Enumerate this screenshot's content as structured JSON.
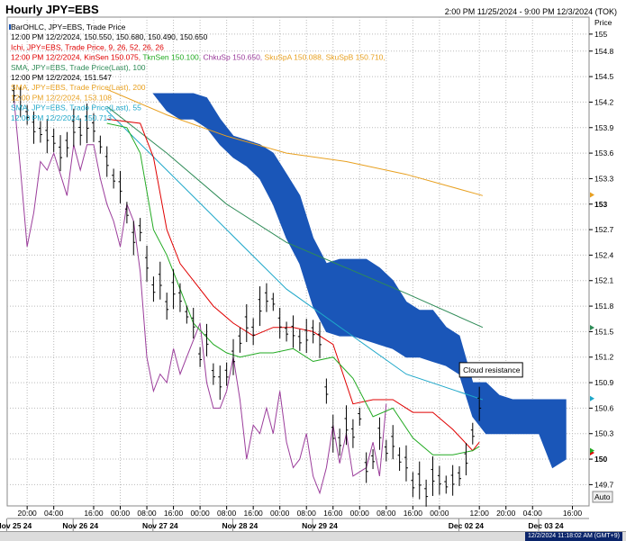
{
  "header": {
    "title": "Hourly JPY=EBS",
    "range": "2:00 PM 11/25/2024 - 9:00 PM 12/3/2024 (TOK)"
  },
  "status": {
    "timestamp": "12/2/2024 11:18:02 AM (GMT+9)"
  },
  "legend": [
    {
      "text": "BarOHLC, JPY=EBS, Trade Price",
      "color": "#000000"
    },
    {
      "text": "12:00 PM 12/2/2024, 150.550, 150.680, 150.490, 150.650",
      "color": "#000000"
    },
    {
      "text": "Ichi, JPY=EBS, Trade Price, 9, 26, 52, 26, 26",
      "color": "#e00000"
    },
    {
      "text": "12:00 PM 12/2/2024, ",
      "color": "#e00000",
      "parts": [
        {
          "text": "KinSen 150.075",
          "color": "#e00000"
        },
        {
          "text": "TknSen 150.100",
          "color": "#22aa22"
        },
        {
          "text": "ChkuSp 150.650",
          "color": "#9b3d9b"
        },
        {
          "text": "SkuSpA 150.088",
          "color": "#e8a020"
        },
        {
          "text": "SkuSpB 150.710",
          "color": "#e8a020"
        }
      ]
    },
    {
      "text": "SMA, JPY=EBS, Trade Price(Last), 100",
      "color": "#2e8b57"
    },
    {
      "text": "12:00 PM 12/2/2024, 151.547",
      "color": "#000000"
    },
    {
      "text": "SMA, JPY=EBS, Trade Price(Last), 200",
      "color": "#e8a020"
    },
    {
      "text": "12:00 PM 12/2/2024, 153.108",
      "color": "#e8a020"
    },
    {
      "text": "SMA, JPY=EBS, Trade Price(Last), 55",
      "color": "#1ea7c9"
    },
    {
      "text": "12:00 PM 12/2/2024, 150.713",
      "color": "#1ea7c9"
    }
  ],
  "annotation": {
    "text": "Cloud resistance"
  },
  "axis_label": "Price",
  "auto_label": "Auto",
  "colors": {
    "cloud": "#1a56b8",
    "kijun": "#e00000",
    "tenkan": "#22aa22",
    "chikou": "#9b3d9b",
    "sma100": "#2e8b57",
    "sma200": "#e8a020",
    "sma55": "#1ea7c9",
    "bars": "#000000"
  },
  "chart_data": {
    "type": "line",
    "title": "Hourly JPY=EBS",
    "ylabel": "Price",
    "ylim": [
      149.45,
      155.2
    ],
    "y_ticks": [
      155,
      154.8,
      154.5,
      154.2,
      153.9,
      153.6,
      153.3,
      153,
      152.7,
      152.4,
      152.1,
      151.8,
      151.5,
      151.2,
      150.9,
      150.6,
      150.3,
      150,
      149.7
    ],
    "y_ticks_bold": [
      153,
      150
    ],
    "x_ticks": [
      "20:00",
      "04:00",
      "16:00",
      "00:00",
      "08:00",
      "16:00",
      "00:00",
      "08:00",
      "16:00",
      "00:00",
      "08:00",
      "16:00",
      "00:00",
      "08:00",
      "16:00",
      "00:00",
      "12:00",
      "20:00",
      "04:00",
      "16:00"
    ],
    "x_tick_hours": [
      6,
      14,
      26,
      34,
      42,
      50,
      58,
      66,
      74,
      82,
      90,
      98,
      106,
      114,
      122,
      130,
      142,
      150,
      158,
      170
    ],
    "date_labels": [
      "Nov 25 24",
      "Nov 26 24",
      "Nov 27 24",
      "Nov 28 24",
      "Nov 29 24",
      "Dec 02 24",
      "Dec 03 24"
    ],
    "date_label_hours": [
      2,
      22,
      46,
      70,
      94,
      138,
      162
    ],
    "x_range_hours": [
      0,
      175
    ],
    "grid": true,
    "markers": [
      {
        "series": "sma200",
        "y": 153.108
      },
      {
        "series": "sma100",
        "y": 151.547
      },
      {
        "series": "sma55",
        "y": 150.713
      },
      {
        "series": "kijun",
        "y": 150.075
      },
      {
        "series": "tenkan",
        "y": 150.1
      }
    ],
    "series": [
      {
        "name": "SMA, JPY=EBS, Trade Price(Last), 200",
        "key": "sma200",
        "x": [
          30,
          48,
          66,
          84,
          102,
          120,
          143
        ],
        "y": [
          154.35,
          154.05,
          153.8,
          153.6,
          153.5,
          153.35,
          153.1
        ]
      },
      {
        "name": "SMA, JPY=EBS, Trade Price(Last), 100",
        "key": "sma100",
        "x": [
          30,
          48,
          66,
          84,
          102,
          120,
          143
        ],
        "y": [
          154.15,
          153.6,
          153.0,
          152.55,
          152.25,
          151.95,
          151.55
        ]
      },
      {
        "name": "SMA, JPY=EBS, Trade Price(Last), 55",
        "key": "sma55",
        "x": [
          30,
          48,
          66,
          84,
          102,
          120,
          143
        ],
        "y": [
          154.1,
          153.4,
          152.7,
          152.0,
          151.5,
          151.0,
          150.7
        ]
      },
      {
        "name": "KinSen",
        "key": "kijun",
        "x": [
          30,
          40,
          44,
          48,
          52,
          56,
          62,
          68,
          74,
          80,
          86,
          92,
          98,
          104,
          110,
          116,
          122,
          128,
          134,
          140,
          142
        ],
        "y": [
          154.0,
          153.95,
          153.55,
          152.7,
          152.3,
          152.1,
          151.8,
          151.6,
          151.45,
          151.55,
          151.55,
          151.5,
          151.35,
          150.65,
          150.7,
          150.7,
          150.55,
          150.55,
          150.35,
          150.1,
          150.2
        ]
      },
      {
        "name": "TknSen",
        "key": "tenkan",
        "x": [
          30,
          36,
          40,
          44,
          48,
          52,
          56,
          62,
          66,
          70,
          76,
          80,
          86,
          92,
          98,
          104,
          110,
          116,
          122,
          128,
          134,
          140,
          142
        ],
        "y": [
          153.95,
          153.9,
          153.6,
          152.7,
          152.4,
          152.0,
          151.6,
          151.35,
          151.25,
          151.2,
          151.25,
          151.25,
          151.3,
          151.15,
          151.2,
          150.95,
          150.5,
          150.6,
          150.25,
          150.05,
          150.05,
          150.1,
          150.15
        ]
      },
      {
        "name": "ChkuSp",
        "key": "chikou",
        "x": [
          2,
          4,
          6,
          8,
          10,
          12,
          14,
          16,
          18,
          20,
          22,
          24,
          26,
          28,
          30,
          32,
          34,
          36,
          38,
          40,
          42,
          44,
          46,
          48,
          50,
          52,
          54,
          56,
          58,
          60,
          62,
          64,
          66,
          68,
          70,
          72,
          74,
          76,
          78,
          80,
          82,
          84,
          86,
          88,
          90,
          92,
          94,
          96,
          98,
          100,
          102,
          104,
          106,
          108,
          110,
          112,
          114
        ],
        "y": [
          154.25,
          153.4,
          152.5,
          152.9,
          153.5,
          153.4,
          153.6,
          153.35,
          153.1,
          153.7,
          153.4,
          153.7,
          153.7,
          153.3,
          153.0,
          152.8,
          152.5,
          153.0,
          152.8,
          152.2,
          151.2,
          150.8,
          151.0,
          150.9,
          151.3,
          151.0,
          151.2,
          151.4,
          151.6,
          150.9,
          150.6,
          150.6,
          150.8,
          151.2,
          150.7,
          150.0,
          150.4,
          150.3,
          150.6,
          150.3,
          150.8,
          150.2,
          149.9,
          150.0,
          150.3,
          149.8,
          149.6,
          149.9,
          150.4,
          149.95,
          150.3,
          149.8,
          149.85,
          149.9,
          150.2,
          149.8,
          150.65
        ]
      },
      {
        "name": "BarOHLC",
        "key": "bars",
        "x": [
          2,
          4,
          6,
          8,
          10,
          12,
          14,
          16,
          18,
          20,
          22,
          24,
          26,
          28,
          30,
          32,
          34,
          36,
          38,
          40,
          42,
          44,
          46,
          48,
          50,
          52,
          54,
          56,
          58,
          60,
          62,
          64,
          66,
          68,
          70,
          72,
          74,
          76,
          78,
          80,
          82,
          84,
          86,
          88,
          90,
          92,
          94,
          96,
          98,
          100,
          102,
          104,
          106,
          108,
          110,
          112,
          114,
          116,
          118,
          120,
          122,
          124,
          126,
          128,
          130,
          132,
          134,
          136,
          138,
          140,
          142
        ],
        "y": [
          154.3,
          154.2,
          154.05,
          153.9,
          153.85,
          153.8,
          153.75,
          153.6,
          153.7,
          153.9,
          153.85,
          153.95,
          153.9,
          153.7,
          153.5,
          153.3,
          153.2,
          152.9,
          152.6,
          152.7,
          152.3,
          152.0,
          152.1,
          151.8,
          152.0,
          151.9,
          151.7,
          151.6,
          151.2,
          151.4,
          151.0,
          150.9,
          151.0,
          151.2,
          151.4,
          151.6,
          151.5,
          151.8,
          151.9,
          151.85,
          151.6,
          151.5,
          151.5,
          151.4,
          151.45,
          151.5,
          151.4,
          150.8,
          150.3,
          150.2,
          150.4,
          150.3,
          150.5,
          149.9,
          150.0,
          150.3,
          150.1,
          150.2,
          150.0,
          149.95,
          149.7,
          149.75,
          149.6,
          149.8,
          149.75,
          149.7,
          149.75,
          149.8,
          150.0,
          150.3,
          150.65
        ]
      },
      {
        "name": "Kumo top",
        "key": "cloud_top",
        "x": [
          44,
          48,
          52,
          56,
          60,
          64,
          68,
          72,
          76,
          80,
          84,
          88,
          92,
          96,
          100,
          104,
          108,
          112,
          116,
          120,
          124,
          128,
          132,
          136,
          140,
          144,
          148,
          152,
          156,
          160,
          164,
          168
        ],
        "y": [
          154.3,
          154.3,
          154.3,
          154.3,
          154.25,
          154.0,
          153.8,
          153.75,
          153.7,
          153.6,
          153.35,
          153.1,
          152.6,
          152.3,
          152.35,
          152.35,
          152.35,
          152.25,
          152.1,
          151.85,
          151.75,
          151.75,
          151.55,
          151.45,
          150.9,
          150.9,
          150.75,
          150.7,
          150.7,
          150.7,
          150.7,
          150.7
        ]
      },
      {
        "name": "Kumo bottom",
        "key": "cloud_bottom",
        "x": [
          44,
          48,
          52,
          56,
          60,
          64,
          68,
          72,
          76,
          80,
          84,
          88,
          92,
          96,
          100,
          104,
          108,
          112,
          116,
          120,
          124,
          128,
          132,
          136,
          140,
          144,
          148,
          152,
          156,
          160,
          164,
          168
        ],
        "y": [
          154.3,
          154.1,
          154.0,
          154.0,
          153.9,
          153.7,
          153.55,
          153.45,
          153.3,
          153.0,
          152.6,
          152.3,
          151.8,
          151.5,
          151.45,
          151.45,
          151.4,
          151.35,
          151.3,
          151.2,
          151.2,
          151.15,
          151.1,
          151.0,
          150.5,
          150.3,
          150.3,
          150.3,
          150.3,
          150.3,
          149.9,
          150.0
        ]
      }
    ]
  }
}
